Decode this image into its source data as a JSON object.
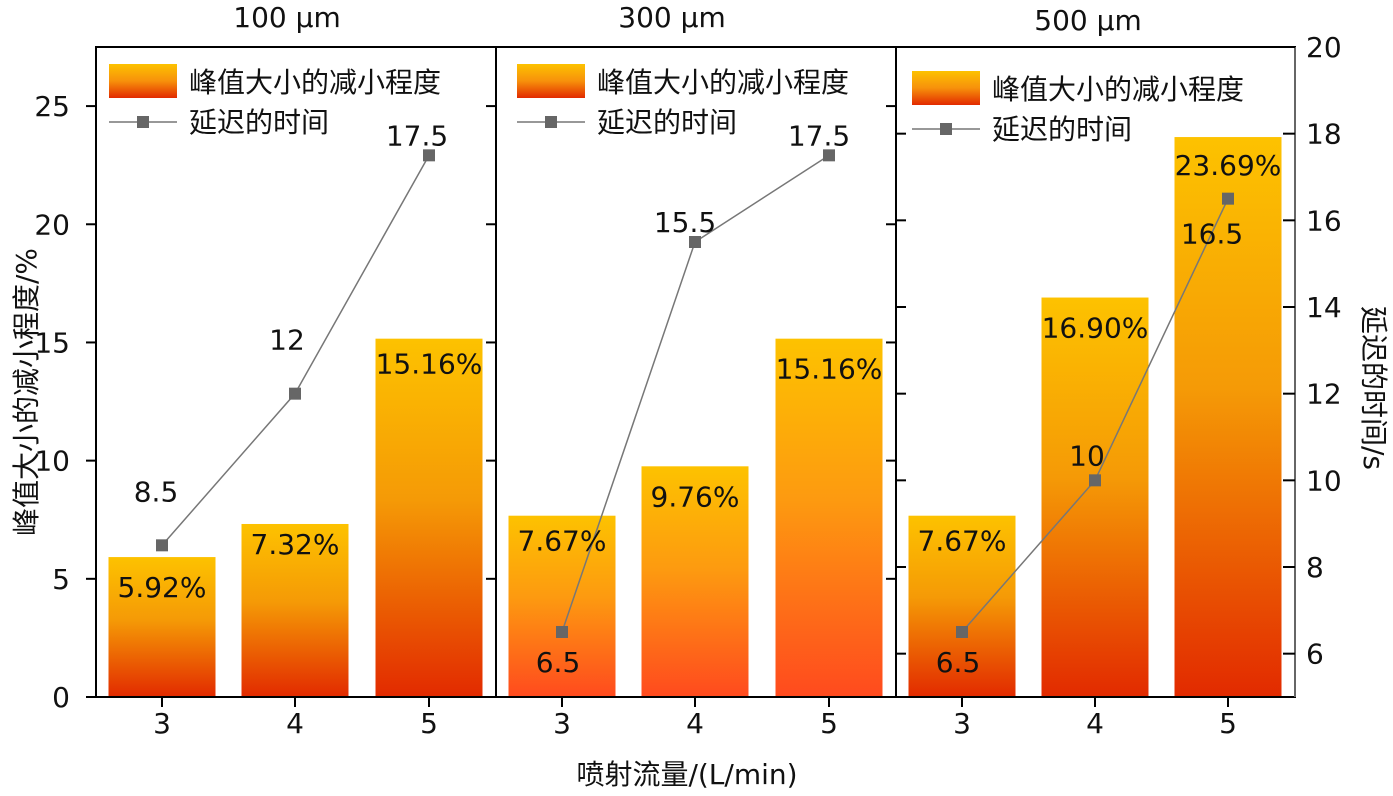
{
  "chart_data": {
    "type": "bar",
    "xlabel": "喷射流量/(L/min)",
    "ylabel": "峰值大小的减小程度/%",
    "y2label": "延迟的时间/s",
    "ylim": [
      0,
      27.5
    ],
    "y2lim": [
      5,
      20
    ],
    "yticks": [
      0,
      5,
      10,
      15,
      20,
      25
    ],
    "y2ticks": [
      6,
      8,
      10,
      12,
      14,
      16,
      18,
      20
    ],
    "categories": [
      "3",
      "4",
      "5"
    ],
    "legend": {
      "bar_label": "峰值大小的减小程度",
      "line_label": "延迟的时间",
      "placement": "top-left"
    },
    "panels": [
      {
        "title": "100 μm",
        "bars": [
          5.92,
          7.32,
          15.16
        ],
        "bar_labels": [
          "5.92%",
          "7.32%",
          "15.16%"
        ],
        "line": [
          8.5,
          12,
          17.5
        ],
        "line_labels": [
          "8.5",
          "12",
          "17.5"
        ]
      },
      {
        "title": "300 μm",
        "bars": [
          7.67,
          9.76,
          15.16
        ],
        "bar_labels": [
          "7.67%",
          "9.76%",
          "15.16%"
        ],
        "line": [
          6.5,
          15.5,
          17.5
        ],
        "line_labels": [
          "6.5",
          "15.5",
          "17.5"
        ]
      },
      {
        "title": "500 μm",
        "bars": [
          7.67,
          16.9,
          23.69
        ],
        "bar_labels": [
          "7.67%",
          "16.90%",
          "23.69%"
        ],
        "line": [
          6.5,
          10,
          16.5
        ],
        "line_labels": [
          "6.5",
          "10",
          "16.5"
        ]
      }
    ],
    "colors": {
      "bar_top": "#fdc200",
      "bar_bottom_1": "#e22a00",
      "bar_bottom_2": "#ff4a1e",
      "line": "#777777",
      "marker": "#666666"
    }
  }
}
